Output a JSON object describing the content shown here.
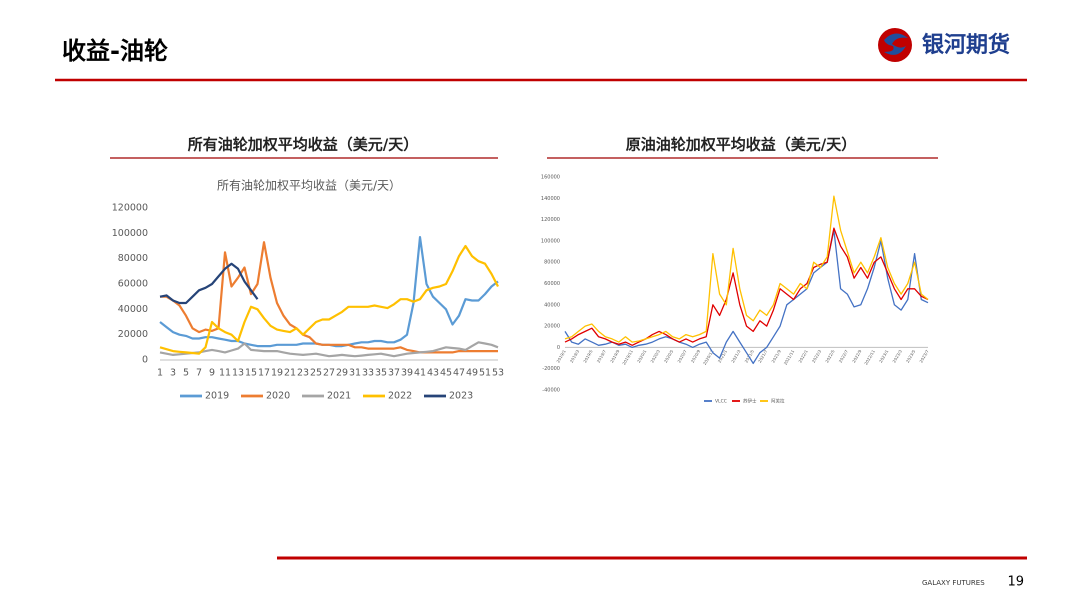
{
  "header": {
    "title": "收益-油轮",
    "logo": "银河期货"
  },
  "footer": {
    "brand": "GALAXY FUTURES",
    "page": "19"
  },
  "chart_data": [
    {
      "type": "line",
      "heading": "所有油轮加权平均收益（美元/天）",
      "title": "所有油轮加权平均收益（美元/天）",
      "categories": [
        "1",
        null,
        "3",
        null,
        "5",
        null,
        "7",
        null,
        "9",
        null,
        "11",
        null,
        "13",
        null,
        "15",
        null,
        "17",
        null,
        "19",
        null,
        "21",
        null,
        "23",
        null,
        "25",
        null,
        "27",
        null,
        "29",
        null,
        "31",
        null,
        "33",
        null,
        "35",
        null,
        "37",
        null,
        "39",
        null,
        "41",
        null,
        "43",
        null,
        "45",
        null,
        "47",
        null,
        "49",
        null,
        "51",
        null,
        "53"
      ],
      "ylim": [
        0,
        120000
      ],
      "yticks": [
        0,
        20000,
        40000,
        60000,
        80000,
        100000,
        120000
      ],
      "grid": false,
      "series": [
        {
          "name": "2019",
          "color": "#5b9bd5",
          "values": [
            30000,
            26000,
            22000,
            20000,
            19000,
            17000,
            17000,
            18000,
            18000,
            17000,
            16000,
            15000,
            15000,
            13000,
            12000,
            11000,
            11000,
            11000,
            12000,
            12000,
            12000,
            12000,
            13000,
            13000,
            13000,
            12000,
            12000,
            11000,
            11000,
            12000,
            13000,
            14000,
            14000,
            15000,
            15000,
            14000,
            14000,
            16000,
            20000,
            45000,
            97000,
            60000,
            50000,
            45000,
            40000,
            28000,
            35000,
            48000,
            47000,
            47000,
            52000,
            58000,
            62000
          ]
        },
        {
          "name": "2020",
          "color": "#ed7d31",
          "values": [
            50000,
            50000,
            47000,
            43000,
            35000,
            25000,
            22000,
            24000,
            23000,
            25000,
            85000,
            58000,
            65000,
            73000,
            52000,
            60000,
            93000,
            65000,
            45000,
            35000,
            28000,
            25000,
            20000,
            18000,
            13000,
            12000,
            12000,
            12000,
            12000,
            12000,
            10000,
            10000,
            9000,
            9000,
            9000,
            9000,
            9000,
            10000,
            8000,
            7000,
            6000,
            6000,
            6000,
            6000,
            6000,
            6000,
            7000,
            7000,
            7000,
            7000,
            7000,
            7000,
            7000
          ]
        },
        {
          "name": "2021",
          "color": "#a5a5a5",
          "values": [
            6000,
            5000,
            4000,
            4500,
            5000,
            5500,
            6000,
            7000,
            8000,
            7000,
            6000,
            7500,
            9000,
            13000,
            8000,
            7500,
            7000,
            7000,
            7000,
            6000,
            5000,
            4500,
            4000,
            4500,
            5000,
            4000,
            3000,
            3500,
            4000,
            3500,
            3000,
            3500,
            4000,
            4500,
            5000,
            4000,
            3000,
            4000,
            5000,
            5500,
            6000,
            6500,
            7000,
            8500,
            10000,
            9500,
            9000,
            8000,
            11000,
            14000,
            13000,
            12000,
            10000
          ]
        },
        {
          "name": "2022",
          "color": "#ffc000",
          "values": [
            10000,
            8500,
            7000,
            6500,
            6000,
            5500,
            5000,
            10000,
            30000,
            25000,
            22000,
            20000,
            15000,
            30000,
            42000,
            40000,
            33000,
            27000,
            24000,
            23000,
            22000,
            25000,
            20000,
            25000,
            30000,
            32000,
            32000,
            35000,
            38000,
            42000,
            42000,
            42000,
            42000,
            43000,
            42000,
            41000,
            44000,
            48000,
            48000,
            46000,
            48000,
            55000,
            57000,
            58000,
            60000,
            70000,
            82000,
            90000,
            82000,
            78000,
            76000,
            68000,
            58000
          ]
        },
        {
          "name": "2023",
          "color": "#264478",
          "values": [
            50000,
            51000,
            47000,
            45000,
            45000,
            50000,
            55000,
            57000,
            60000,
            66000,
            72000,
            76000,
            72000,
            62000,
            55000,
            48000,
            null,
            null,
            null,
            null,
            null,
            null,
            null,
            null,
            null,
            null,
            null,
            null,
            null,
            null,
            null,
            null,
            null,
            null,
            null,
            null,
            null,
            null,
            null,
            null,
            null,
            null,
            null,
            null,
            null,
            null,
            null,
            null,
            null,
            null,
            null,
            null,
            null
          ]
        }
      ]
    },
    {
      "type": "line",
      "heading": "原油油轮加权平均收益（美元/天）",
      "categories": [
        "2019/1",
        null,
        "2019/3",
        null,
        "2019/5",
        null,
        "2019/7",
        null,
        "2019/9",
        null,
        "2019/11",
        null,
        "2020/1",
        null,
        "2020/3",
        null,
        "2020/5",
        null,
        "2020/7",
        null,
        "2020/9",
        null,
        "2020/11",
        null,
        "2021/1",
        null,
        "2021/3",
        null,
        "2021/5",
        null,
        "2021/7",
        null,
        "2021/9",
        null,
        "2021/11",
        null,
        "2022/1",
        null,
        "2022/3",
        null,
        "2022/5",
        null,
        "2022/7",
        null,
        "2022/9",
        null,
        "2022/11",
        null,
        "2023/1",
        null,
        "2023/3",
        null,
        "2023/5",
        null,
        "2023/7"
      ],
      "ylim": [
        -40000,
        160000
      ],
      "yticks": [
        -40000,
        -20000,
        0,
        20000,
        40000,
        60000,
        80000,
        100000,
        120000,
        140000,
        160000
      ],
      "grid": false,
      "series": [
        {
          "name": "VLCC",
          "color": "#4472c4",
          "values": [
            15000,
            5000,
            3000,
            8000,
            5000,
            2000,
            3000,
            5000,
            2000,
            3000,
            0,
            2000,
            3000,
            5000,
            8000,
            10000,
            8000,
            5000,
            3000,
            0,
            3000,
            5000,
            -5000,
            -10000,
            5000,
            15000,
            5000,
            -5000,
            -15000,
            -5000,
            0,
            10000,
            20000,
            40000,
            45000,
            50000,
            55000,
            70000,
            75000,
            80000,
            110000,
            55000,
            50000,
            38000,
            40000,
            55000,
            75000,
            100000,
            65000,
            40000,
            35000,
            45000,
            88000,
            45000,
            42000
          ]
        },
        {
          "name": "苏伊士",
          "color": "#e00000",
          "values": [
            5000,
            8000,
            12000,
            15000,
            18000,
            10000,
            8000,
            5000,
            3000,
            5000,
            2000,
            5000,
            8000,
            12000,
            15000,
            12000,
            8000,
            5000,
            8000,
            5000,
            8000,
            10000,
            40000,
            30000,
            45000,
            70000,
            40000,
            20000,
            15000,
            25000,
            20000,
            35000,
            55000,
            50000,
            45000,
            55000,
            60000,
            75000,
            78000,
            80000,
            112000,
            95000,
            85000,
            65000,
            75000,
            65000,
            80000,
            85000,
            70000,
            55000,
            45000,
            55000,
            55000,
            48000,
            45000
          ]
        },
        {
          "name": "阿芙拉",
          "color": "#ffc000",
          "values": [
            8000,
            10000,
            15000,
            20000,
            22000,
            15000,
            10000,
            8000,
            5000,
            10000,
            5000,
            6000,
            8000,
            10000,
            12000,
            15000,
            10000,
            8000,
            12000,
            10000,
            12000,
            15000,
            88000,
            50000,
            40000,
            93000,
            55000,
            30000,
            25000,
            35000,
            30000,
            40000,
            60000,
            55000,
            50000,
            60000,
            55000,
            80000,
            75000,
            85000,
            142000,
            110000,
            90000,
            70000,
            80000,
            70000,
            85000,
            103000,
            75000,
            60000,
            50000,
            60000,
            80000,
            50000,
            45000
          ]
        }
      ]
    }
  ]
}
